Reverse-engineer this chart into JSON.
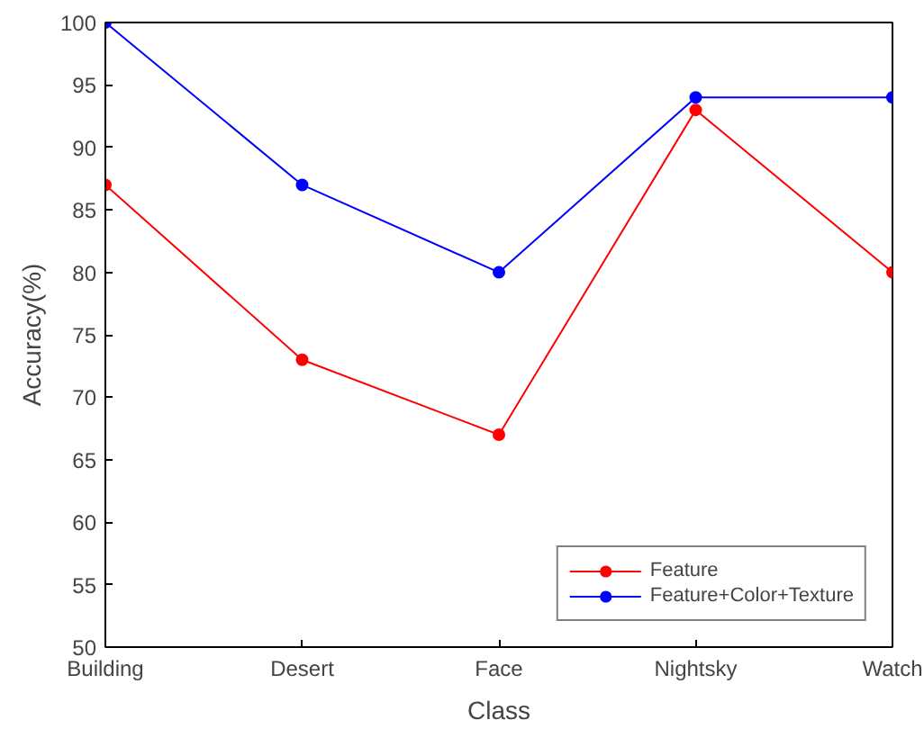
{
  "chart_data": {
    "type": "line",
    "xlabel": "Class",
    "ylabel": "Accuracy(%)",
    "categories": [
      "Building",
      "Desert",
      "Face",
      "Nightsky",
      "Watch"
    ],
    "series": [
      {
        "name": "Feature",
        "color": "#ff0000",
        "values": [
          87,
          73,
          67,
          93,
          80
        ]
      },
      {
        "name": "Feature+Color+Texture",
        "color": "#0000ff",
        "values": [
          100,
          87,
          80,
          94,
          94
        ]
      }
    ],
    "ylim": [
      50,
      100
    ],
    "yticks": [
      50,
      55,
      60,
      65,
      70,
      75,
      80,
      85,
      90,
      95,
      100
    ],
    "marker": "circle",
    "line_style": "solid",
    "grid": false,
    "legend": "bottom right"
  }
}
